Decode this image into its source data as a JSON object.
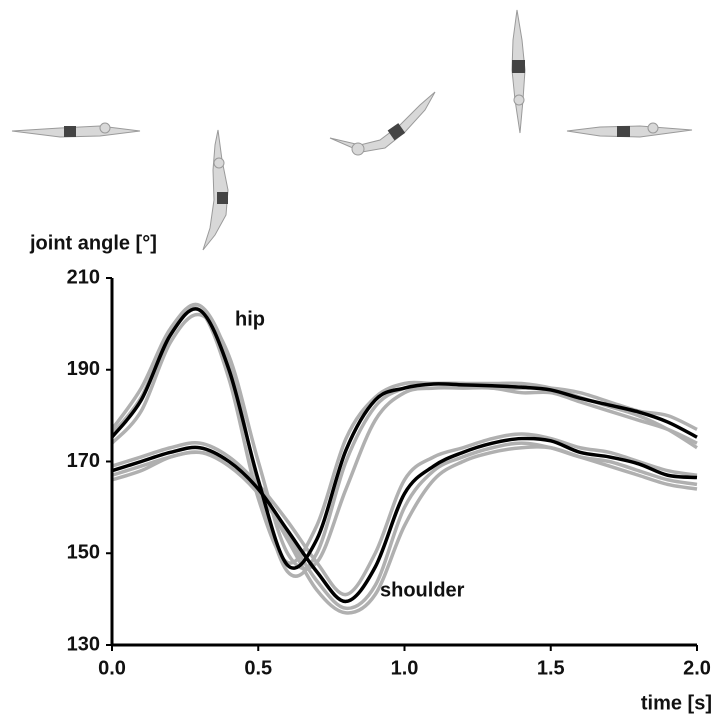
{
  "chart_data": {
    "type": "line",
    "y_label": "joint angle [°]",
    "x_label": "time [s]",
    "annotations": [
      "hip",
      "shoulder"
    ],
    "x": [
      0,
      0.1,
      0.2,
      0.3,
      0.4,
      0.5,
      0.6,
      0.7,
      0.8,
      0.9,
      1.0,
      1.1,
      1.2,
      1.3,
      1.4,
      1.5,
      1.6,
      1.7,
      1.8,
      1.9,
      2.0
    ],
    "xlim": [
      0,
      2
    ],
    "xticks": [
      {
        "value": 0,
        "label": "0.0"
      },
      0.5,
      {
        "value": 1,
        "label": "1.0"
      },
      1.5,
      {
        "value": 2,
        "label": "2.0"
      }
    ],
    "ylim": [
      130,
      210
    ],
    "yticks": [
      130,
      150,
      170,
      190,
      210
    ],
    "series": [
      {
        "color": "#b0b0b0",
        "values": [
          177,
          186,
          199,
          204,
          192,
          165,
          146,
          150,
          170,
          182,
          186,
          187,
          187,
          187,
          187,
          186,
          184,
          182,
          180,
          177,
          173
        ]
      },
      {
        "color": "#b0b0b0",
        "values": [
          174,
          181,
          196,
          202,
          193,
          170,
          150,
          148,
          164,
          179,
          185,
          186,
          186,
          186,
          185,
          185,
          183,
          181,
          179,
          177,
          174
        ]
      },
      {
        "color": "#b0b0b0",
        "values": [
          176,
          184,
          198,
          203,
          188,
          162,
          148,
          156,
          175,
          184,
          187,
          187,
          187,
          186,
          186,
          186,
          185,
          183,
          181,
          180,
          177
        ]
      },
      {
        "color": "#b0b0b0",
        "values": [
          167,
          169,
          171,
          172,
          169,
          163,
          154,
          144,
          138,
          143,
          160,
          168,
          171,
          173,
          174,
          173,
          171,
          170,
          168,
          166,
          165
        ]
      },
      {
        "color": "#b0b0b0",
        "values": [
          169,
          171,
          173,
          174,
          171,
          165,
          157,
          148,
          141,
          150,
          166,
          171,
          173,
          175,
          176,
          175,
          173,
          172,
          170,
          168,
          167
        ]
      },
      {
        "color": "#b0b0b0",
        "values": [
          166,
          168,
          171,
          172,
          170,
          164,
          153,
          142,
          137,
          141,
          156,
          166,
          170,
          172,
          173,
          173,
          171,
          169,
          167,
          165,
          164
        ]
      },
      {
        "color": "#000000",
        "values": [
          175.3,
          183.4,
          197.6,
          203,
          190,
          166,
          147.4,
          153,
          172.5,
          183.4,
          186,
          186.9,
          186.7,
          186.5,
          186.2,
          185.6,
          183.8,
          182.3,
          180.8,
          178.6,
          175.3
        ]
      },
      {
        "color": "#000000",
        "values": [
          168,
          170,
          172,
          173,
          170,
          164,
          155,
          146,
          139.5,
          147,
          163,
          169,
          172,
          174,
          175,
          174.5,
          172,
          171,
          169.5,
          167,
          166.5
        ]
      }
    ]
  }
}
